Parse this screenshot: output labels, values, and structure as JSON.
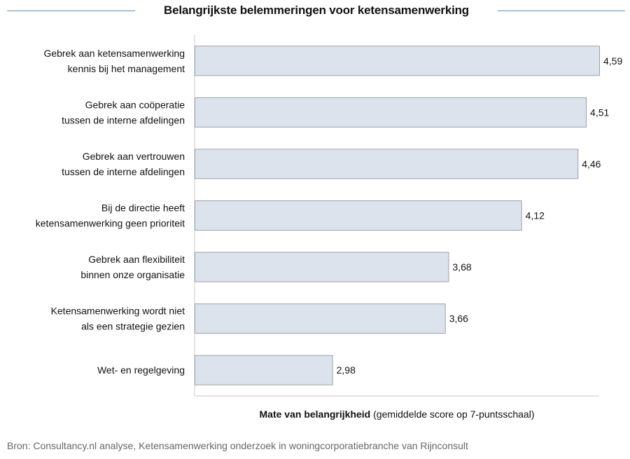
{
  "title": "Belangrijkste belemmeringen voor ketensamenwerking",
  "chart_data": {
    "type": "bar",
    "orientation": "horizontal",
    "categories": [
      [
        "Gebrek aan ketensamenwerking",
        "kennis bij het management"
      ],
      [
        "Gebrek aan coöperatie",
        "tussen de interne afdelingen"
      ],
      [
        "Gebrek aan vertrouwen",
        "tussen de interne afdelingen"
      ],
      [
        "Bij de directie heeft",
        "ketensamenwerking geen prioriteit"
      ],
      [
        "Gebrek aan flexibiliteit",
        "binnen onze organisatie"
      ],
      [
        "Ketensamenwerking wordt niet",
        "als een strategie gezien"
      ],
      [
        "Wet- en regelgeving"
      ]
    ],
    "values": [
      4.59,
      4.51,
      4.46,
      4.12,
      3.68,
      3.66,
      2.98
    ],
    "value_labels": [
      "4,59",
      "4,51",
      "4,46",
      "4,12",
      "3,68",
      "3,66",
      "2,98"
    ],
    "xlim": [
      2.15,
      4.59
    ],
    "grid": false,
    "bar_color": "#dde3ed",
    "bar_border_color": "#9aa1ab"
  },
  "xlabel_bold": "Mate van belangrijkheid",
  "xlabel_rest": " (gemiddelde score op 7-puntsschaal)",
  "source": "Bron: Consultancy.nl analyse, Ketensamenwerking onderzoek in woningcorporatiebranche van Rijnconsult",
  "colors": {
    "title_rule": "#5a8db7"
  }
}
